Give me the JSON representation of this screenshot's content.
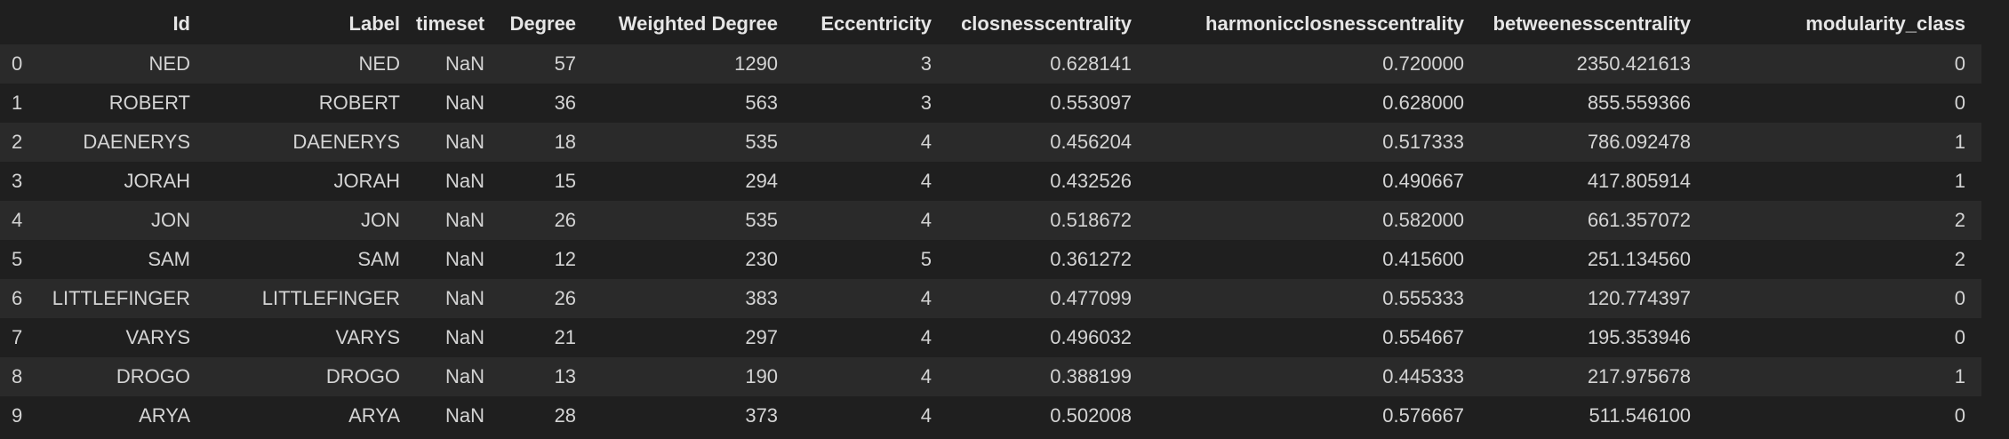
{
  "table": {
    "columns": [
      "Id",
      "Label",
      "timeset",
      "Degree",
      "Weighted Degree",
      "Eccentricity",
      "closnesscentrality",
      "harmonicclosnesscentrality",
      "betweenesscentrality",
      "modularity_class"
    ],
    "rows": [
      {
        "index": "0",
        "cells": [
          "NED",
          "NED",
          "NaN",
          "57",
          "1290",
          "3",
          "0.628141",
          "0.720000",
          "2350.421613",
          "0"
        ]
      },
      {
        "index": "1",
        "cells": [
          "ROBERT",
          "ROBERT",
          "NaN",
          "36",
          "563",
          "3",
          "0.553097",
          "0.628000",
          "855.559366",
          "0"
        ]
      },
      {
        "index": "2",
        "cells": [
          "DAENERYS",
          "DAENERYS",
          "NaN",
          "18",
          "535",
          "4",
          "0.456204",
          "0.517333",
          "786.092478",
          "1"
        ]
      },
      {
        "index": "3",
        "cells": [
          "JORAH",
          "JORAH",
          "NaN",
          "15",
          "294",
          "4",
          "0.432526",
          "0.490667",
          "417.805914",
          "1"
        ]
      },
      {
        "index": "4",
        "cells": [
          "JON",
          "JON",
          "NaN",
          "26",
          "535",
          "4",
          "0.518672",
          "0.582000",
          "661.357072",
          "2"
        ]
      },
      {
        "index": "5",
        "cells": [
          "SAM",
          "SAM",
          "NaN",
          "12",
          "230",
          "5",
          "0.361272",
          "0.415600",
          "251.134560",
          "2"
        ]
      },
      {
        "index": "6",
        "cells": [
          "LITTLEFINGER",
          "LITTLEFINGER",
          "NaN",
          "26",
          "383",
          "4",
          "0.477099",
          "0.555333",
          "120.774397",
          "0"
        ]
      },
      {
        "index": "7",
        "cells": [
          "VARYS",
          "VARYS",
          "NaN",
          "21",
          "297",
          "4",
          "0.496032",
          "0.554667",
          "195.353946",
          "0"
        ]
      },
      {
        "index": "8",
        "cells": [
          "DROGO",
          "DROGO",
          "NaN",
          "13",
          "190",
          "4",
          "0.388199",
          "0.445333",
          "217.975678",
          "1"
        ]
      },
      {
        "index": "9",
        "cells": [
          "ARYA",
          "ARYA",
          "NaN",
          "28",
          "373",
          "4",
          "0.502008",
          "0.576667",
          "511.546100",
          "0"
        ]
      }
    ]
  }
}
